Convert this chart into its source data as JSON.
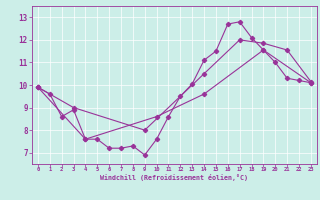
{
  "xlabel": "Windchill (Refroidissement éolien,°C)",
  "xlim": [
    -0.5,
    23.5
  ],
  "ylim": [
    6.5,
    13.5
  ],
  "xticks": [
    0,
    1,
    2,
    3,
    4,
    5,
    6,
    7,
    8,
    9,
    10,
    11,
    12,
    13,
    14,
    15,
    16,
    17,
    18,
    19,
    20,
    21,
    22,
    23
  ],
  "yticks": [
    7,
    8,
    9,
    10,
    11,
    12,
    13
  ],
  "bg_color": "#cceee8",
  "line_color": "#993399",
  "line1_x": [
    0,
    1,
    2,
    3,
    4,
    5,
    6,
    7,
    8,
    9,
    10,
    11,
    12,
    13,
    14,
    15,
    16,
    17,
    18,
    19,
    20,
    21,
    22,
    23
  ],
  "line1_y": [
    9.9,
    9.6,
    8.6,
    8.9,
    7.6,
    7.6,
    7.2,
    7.2,
    7.3,
    6.9,
    7.6,
    8.6,
    9.5,
    10.05,
    11.1,
    11.5,
    12.7,
    12.8,
    12.1,
    11.55,
    11.0,
    10.3,
    10.2,
    10.1
  ],
  "line2_x": [
    0,
    3,
    9,
    14,
    17,
    19,
    21,
    23
  ],
  "line2_y": [
    9.9,
    9.0,
    8.0,
    10.5,
    12.0,
    11.85,
    11.55,
    10.15
  ],
  "line3_x": [
    0,
    4,
    10,
    14,
    19,
    23
  ],
  "line3_y": [
    9.9,
    7.6,
    8.6,
    9.6,
    11.55,
    10.1
  ]
}
